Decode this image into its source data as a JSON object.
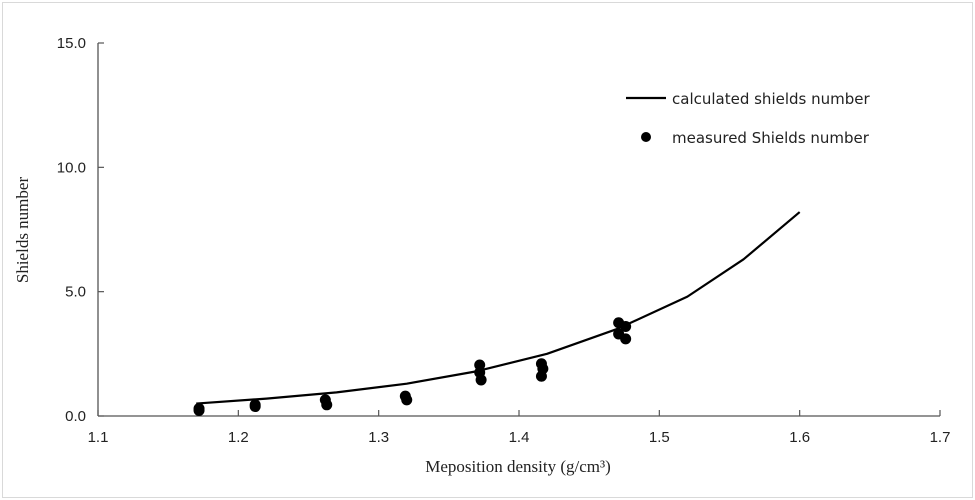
{
  "chart_data": {
    "type": "line",
    "title": "",
    "xlabel": "Meposition density (g/cm³)",
    "ylabel": "Shields number",
    "xlim": [
      1.1,
      1.7
    ],
    "ylim": [
      0,
      15
    ],
    "xticks": [
      "1.1",
      "1.2",
      "1.3",
      "1.4",
      "1.5",
      "1.6",
      "1.7"
    ],
    "yticks": [
      "0.0",
      "5.0",
      "10.0",
      "15.0"
    ],
    "grid": false,
    "legend_position": "top-right",
    "series": [
      {
        "name": "calculated shields number",
        "type": "line",
        "color": "#000000",
        "x": [
          1.17,
          1.22,
          1.27,
          1.32,
          1.37,
          1.42,
          1.47,
          1.52,
          1.56,
          1.6
        ],
        "y": [
          0.5,
          0.7,
          0.95,
          1.3,
          1.8,
          2.5,
          3.5,
          4.8,
          6.3,
          8.2
        ]
      },
      {
        "name": "measured Shields number",
        "type": "scatter",
        "color": "#000000",
        "x": [
          1.172,
          1.172,
          1.212,
          1.212,
          1.262,
          1.263,
          1.319,
          1.32,
          1.372,
          1.372,
          1.373,
          1.416,
          1.417,
          1.416,
          1.471,
          1.471,
          1.476,
          1.476
        ],
        "y": [
          0.3,
          0.22,
          0.45,
          0.38,
          0.65,
          0.45,
          0.8,
          0.65,
          2.05,
          1.75,
          1.45,
          2.1,
          1.9,
          1.6,
          3.75,
          3.3,
          3.6,
          3.1
        ]
      }
    ]
  }
}
